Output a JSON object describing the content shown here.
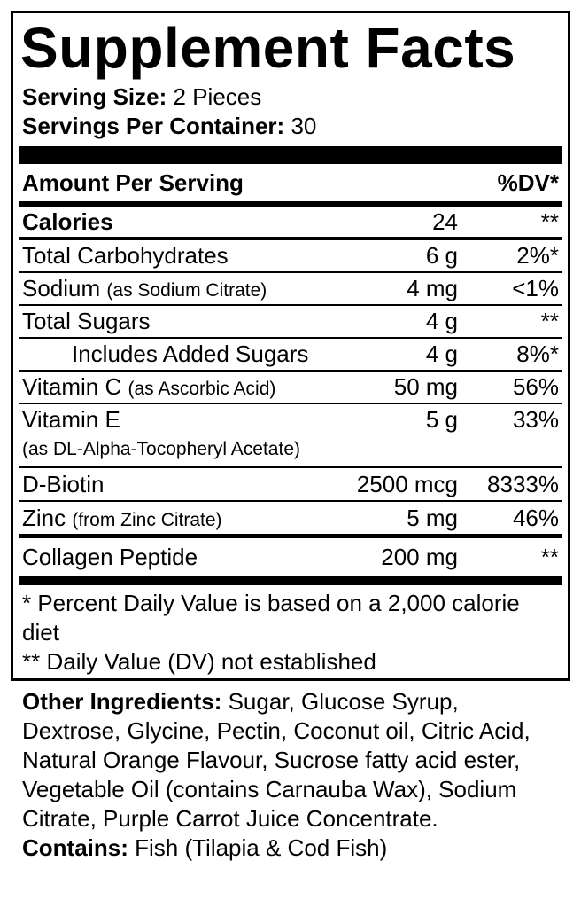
{
  "title": "Supplement Facts",
  "serving_size": {
    "label": "Serving Size:",
    "value": "2 Pieces"
  },
  "servings_per_container": {
    "label": "Servings Per Container:",
    "value": "30"
  },
  "header": {
    "amount": "Amount Per Serving",
    "dv": "%DV*"
  },
  "rows": [
    {
      "name": "Calories",
      "amount": "24",
      "dv": "**"
    },
    {
      "name": "Total Carbohydrates",
      "amount": "6 g",
      "dv": "2%*"
    },
    {
      "name": "Sodium",
      "qualifier": "(as Sodium Citrate)",
      "amount": "4 mg",
      "dv": "<1%"
    },
    {
      "name": "Total Sugars",
      "amount": "4 g",
      "dv": "**"
    },
    {
      "name": "Includes Added Sugars",
      "amount": "4 g",
      "dv": "8%*"
    },
    {
      "name": "Vitamin C",
      "qualifier": "(as Ascorbic Acid)",
      "amount": "50 mg",
      "dv": "56%"
    },
    {
      "name": "Vitamin E",
      "qualifier": "(as DL-Alpha-Tocopheryl Acetate)",
      "amount": "5 g",
      "dv": "33%"
    },
    {
      "name": "D-Biotin",
      "amount": "2500 mcg",
      "dv": "8333%"
    },
    {
      "name": "Zinc",
      "qualifier": "(from Zinc Citrate)",
      "amount": "5 mg",
      "dv": "46%"
    },
    {
      "name": "Collagen Peptide",
      "amount": "200 mg",
      "dv": "**"
    }
  ],
  "footnotes": [
    "* Percent Daily Value is based on a 2,000 calorie diet",
    "** Daily Value (DV) not established"
  ],
  "other_ingredients": {
    "label": "Other Ingredients:",
    "text": "Sugar, Glucose Syrup, Dextrose, Glycine, Pectin, Coconut oil, Citric Acid, Natural Orange Flavour, Sucrose fatty acid ester, Vegetable Oil (contains Carnauba Wax), Sodium Citrate, Purple Carrot Juice Concentrate."
  },
  "contains": {
    "label": "Contains:",
    "text": "Fish (Tilapia & Cod Fish)"
  }
}
